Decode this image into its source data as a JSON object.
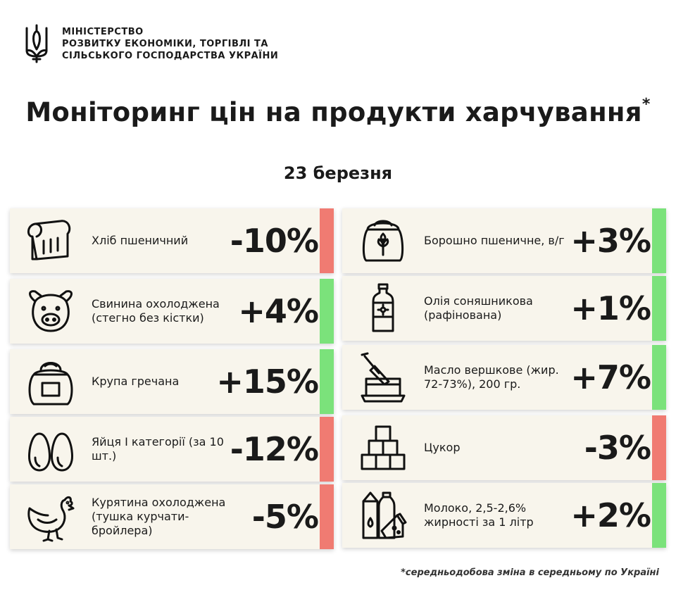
{
  "ministry": {
    "line1": "МІНІСТЕРСТВО",
    "line2": "РОЗВИТКУ ЕКОНОМІКИ, ТОРГІВЛІ ТА",
    "line3": "СІЛЬСЬКОГО ГОСПОДАРСТВА УКРАЇНИ"
  },
  "title": "Моніторинг цін на продукти харчування",
  "title_mark": "*",
  "date": "23 березня",
  "colors": {
    "increase": "#7be27b",
    "decrease": "#f07b72",
    "card": "#f8f5ec"
  },
  "products": [
    {
      "name": "Хліб пшеничний",
      "change": "-10%",
      "direction": "decrease",
      "icon": "bread-icon"
    },
    {
      "name": "Борошно пшеничне, в/г",
      "change": "+3%",
      "direction": "increase",
      "icon": "flour-sack-icon"
    },
    {
      "name": "Свинина охолоджена (стегно без кістки)",
      "change": "+4%",
      "direction": "increase",
      "icon": "pig-icon"
    },
    {
      "name": "Олія соняшникова (рафінована)",
      "change": "+1%",
      "direction": "increase",
      "icon": "oil-bottle-icon"
    },
    {
      "name": "Крупа гречана",
      "change": "+15%",
      "direction": "increase",
      "icon": "grain-sack-icon"
    },
    {
      "name": "Масло вершкове (жир. 72-73%), 200 гр.",
      "change": "+7%",
      "direction": "increase",
      "icon": "butter-icon"
    },
    {
      "name": "Яйця І категорії (за 10 шт.)",
      "change": "-12%",
      "direction": "decrease",
      "icon": "eggs-icon"
    },
    {
      "name": "Цукор",
      "change": "-3%",
      "direction": "decrease",
      "icon": "sugar-cubes-icon"
    },
    {
      "name": "Курятина охолоджена (тушка курчати-бройлера)",
      "change": "-5%",
      "direction": "decrease",
      "icon": "chicken-icon"
    },
    {
      "name": "Молоко, 2,5-2,6% жирності за 1 літр",
      "change": "+2%",
      "direction": "increase",
      "icon": "milk-icon"
    }
  ],
  "footnote": "*середньодобова зміна в середньому по Україні"
}
